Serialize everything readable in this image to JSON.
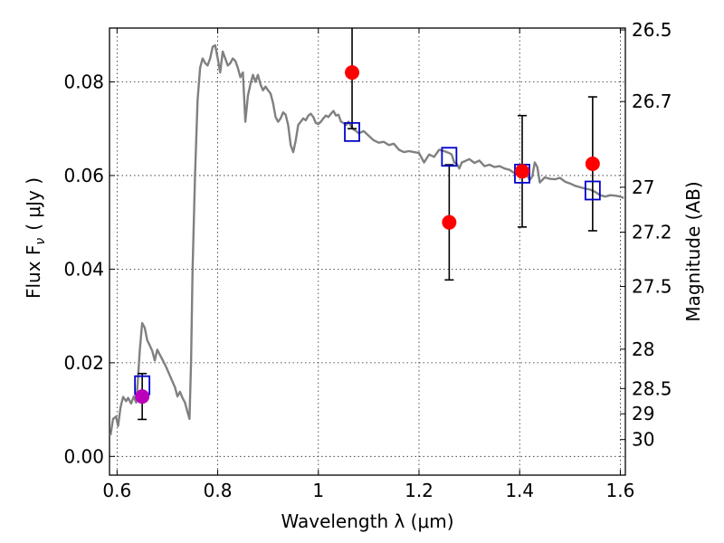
{
  "chart_data": {
    "type": "scatter",
    "xlabel": "Wavelength  λ (μm)",
    "ylabel_left": "Flux  F",
    "ylabel_left_sub": "ν",
    "ylabel_left_unit": "( μJy )",
    "ylabel_right": "Magnitude (AB)",
    "xlim": [
      0.585,
      1.61
    ],
    "ylim": [
      -0.004,
      0.0915
    ],
    "grid": true,
    "x_ticks": [
      {
        "value": 0.6,
        "label": "0.6"
      },
      {
        "value": 0.8,
        "label": "0.8"
      },
      {
        "value": 1.0,
        "label": "1"
      },
      {
        "value": 1.2,
        "label": "1.2"
      },
      {
        "value": 1.4,
        "label": "1.4"
      },
      {
        "value": 1.6,
        "label": "1.6"
      }
    ],
    "y_ticks": [
      {
        "value": 0.0,
        "label": "0.00"
      },
      {
        "value": 0.02,
        "label": "0.02"
      },
      {
        "value": 0.04,
        "label": "0.04"
      },
      {
        "value": 0.06,
        "label": "0.06"
      },
      {
        "value": 0.08,
        "label": "0.08"
      }
    ],
    "magnitude_ticks": [
      {
        "flux": 0.0911,
        "label": "26.5"
      },
      {
        "flux": 0.0758,
        "label": "26.7"
      },
      {
        "flux": 0.0575,
        "label": "27"
      },
      {
        "flux": 0.0479,
        "label": "27.2"
      },
      {
        "flux": 0.0363,
        "label": "27.5"
      },
      {
        "flux": 0.0229,
        "label": "28"
      },
      {
        "flux": 0.0145,
        "label": "28.5"
      },
      {
        "flux": 0.0091,
        "label": "29"
      },
      {
        "flux": 0.0036,
        "label": "30"
      }
    ],
    "series": [
      {
        "kind": "model_spectrum",
        "color": "#808080",
        "points": [
          [
            0.587,
            0.0045
          ],
          [
            0.592,
            0.008
          ],
          [
            0.598,
            0.0085
          ],
          [
            0.602,
            0.0065
          ],
          [
            0.607,
            0.0105
          ],
          [
            0.612,
            0.0127
          ],
          [
            0.618,
            0.0118
          ],
          [
            0.622,
            0.0125
          ],
          [
            0.628,
            0.0113
          ],
          [
            0.633,
            0.0128
          ],
          [
            0.638,
            0.0115
          ],
          [
            0.641,
            0.0155
          ],
          [
            0.645,
            0.0225
          ],
          [
            0.65,
            0.0285
          ],
          [
            0.655,
            0.0275
          ],
          [
            0.66,
            0.0248
          ],
          [
            0.665,
            0.0237
          ],
          [
            0.67,
            0.0225
          ],
          [
            0.675,
            0.0205
          ],
          [
            0.68,
            0.0228
          ],
          [
            0.686,
            0.0215
          ],
          [
            0.692,
            0.0203
          ],
          [
            0.698,
            0.019
          ],
          [
            0.704,
            0.0175
          ],
          [
            0.71,
            0.016
          ],
          [
            0.715,
            0.0148
          ],
          [
            0.72,
            0.0128
          ],
          [
            0.725,
            0.0138
          ],
          [
            0.73,
            0.0125
          ],
          [
            0.735,
            0.0115
          ],
          [
            0.74,
            0.0095
          ],
          [
            0.744,
            0.008
          ],
          [
            0.747,
            0.02
          ],
          [
            0.75,
            0.04
          ],
          [
            0.755,
            0.06
          ],
          [
            0.76,
            0.076
          ],
          [
            0.765,
            0.083
          ],
          [
            0.77,
            0.085
          ],
          [
            0.775,
            0.084
          ],
          [
            0.78,
            0.0835
          ],
          [
            0.785,
            0.085
          ],
          [
            0.79,
            0.0875
          ],
          [
            0.795,
            0.0878
          ],
          [
            0.8,
            0.085
          ],
          [
            0.805,
            0.082
          ],
          [
            0.81,
            0.0865
          ],
          [
            0.815,
            0.085
          ],
          [
            0.82,
            0.0835
          ],
          [
            0.825,
            0.084
          ],
          [
            0.83,
            0.085
          ],
          [
            0.835,
            0.0845
          ],
          [
            0.84,
            0.083
          ],
          [
            0.845,
            0.081
          ],
          [
            0.85,
            0.082
          ],
          [
            0.855,
            0.0715
          ],
          [
            0.86,
            0.077
          ],
          [
            0.865,
            0.0795
          ],
          [
            0.87,
            0.0815
          ],
          [
            0.875,
            0.08
          ],
          [
            0.88,
            0.0815
          ],
          [
            0.885,
            0.0795
          ],
          [
            0.89,
            0.0782
          ],
          [
            0.895,
            0.079
          ],
          [
            0.9,
            0.0782
          ],
          [
            0.905,
            0.0775
          ],
          [
            0.91,
            0.0755
          ],
          [
            0.915,
            0.0725
          ],
          [
            0.92,
            0.0715
          ],
          [
            0.925,
            0.0722
          ],
          [
            0.93,
            0.0735
          ],
          [
            0.935,
            0.073
          ],
          [
            0.94,
            0.0708
          ],
          [
            0.945,
            0.0665
          ],
          [
            0.95,
            0.065
          ],
          [
            0.955,
            0.0675
          ],
          [
            0.96,
            0.0708
          ],
          [
            0.965,
            0.0715
          ],
          [
            0.97,
            0.0722
          ],
          [
            0.975,
            0.0718
          ],
          [
            0.98,
            0.0728
          ],
          [
            0.985,
            0.0732
          ],
          [
            0.99,
            0.0725
          ],
          [
            0.995,
            0.0712
          ],
          [
            1.0,
            0.071
          ],
          [
            1.005,
            0.0715
          ],
          [
            1.01,
            0.0722
          ],
          [
            1.015,
            0.0728
          ],
          [
            1.02,
            0.0725
          ],
          [
            1.025,
            0.0732
          ],
          [
            1.03,
            0.0738
          ],
          [
            1.035,
            0.0728
          ],
          [
            1.04,
            0.073
          ],
          [
            1.045,
            0.0715
          ],
          [
            1.05,
            0.0712
          ],
          [
            1.055,
            0.0708
          ],
          [
            1.06,
            0.0715
          ],
          [
            1.065,
            0.0705
          ],
          [
            1.07,
            0.0698
          ],
          [
            1.075,
            0.0695
          ],
          [
            1.08,
            0.069
          ],
          [
            1.09,
            0.0695
          ],
          [
            1.1,
            0.0685
          ],
          [
            1.11,
            0.0675
          ],
          [
            1.12,
            0.067
          ],
          [
            1.13,
            0.0672
          ],
          [
            1.14,
            0.0665
          ],
          [
            1.15,
            0.0668
          ],
          [
            1.16,
            0.0655
          ],
          [
            1.17,
            0.065
          ],
          [
            1.18,
            0.0652
          ],
          [
            1.19,
            0.065
          ],
          [
            1.2,
            0.0648
          ],
          [
            1.21,
            0.0628
          ],
          [
            1.22,
            0.0645
          ],
          [
            1.23,
            0.064
          ],
          [
            1.24,
            0.0655
          ],
          [
            1.25,
            0.0652
          ],
          [
            1.26,
            0.0648
          ],
          [
            1.265,
            0.0645
          ],
          [
            1.27,
            0.0628
          ],
          [
            1.275,
            0.0625
          ],
          [
            1.28,
            0.0615
          ],
          [
            1.285,
            0.0628
          ],
          [
            1.29,
            0.063
          ],
          [
            1.3,
            0.0635
          ],
          [
            1.31,
            0.0627
          ],
          [
            1.32,
            0.0632
          ],
          [
            1.33,
            0.062
          ],
          [
            1.34,
            0.0623
          ],
          [
            1.35,
            0.0618
          ],
          [
            1.36,
            0.062
          ],
          [
            1.37,
            0.0615
          ],
          [
            1.38,
            0.0612
          ],
          [
            1.39,
            0.0605
          ],
          [
            1.4,
            0.06
          ],
          [
            1.41,
            0.061
          ],
          [
            1.42,
            0.059
          ],
          [
            1.425,
            0.0598
          ],
          [
            1.43,
            0.0628
          ],
          [
            1.435,
            0.0618
          ],
          [
            1.44,
            0.0585
          ],
          [
            1.45,
            0.0596
          ],
          [
            1.46,
            0.0593
          ],
          [
            1.47,
            0.0592
          ],
          [
            1.48,
            0.0595
          ],
          [
            1.49,
            0.0587
          ],
          [
            1.5,
            0.0583
          ],
          [
            1.51,
            0.0578
          ],
          [
            1.52,
            0.0575
          ],
          [
            1.53,
            0.0572
          ],
          [
            1.54,
            0.057
          ],
          [
            1.55,
            0.0565
          ],
          [
            1.56,
            0.0558
          ],
          [
            1.57,
            0.0555
          ],
          [
            1.58,
            0.0558
          ],
          [
            1.59,
            0.0557
          ],
          [
            1.6,
            0.0555
          ],
          [
            1.607,
            0.0552
          ]
        ]
      },
      {
        "kind": "model_photometry",
        "marker": "open-square",
        "color": "#0000cc",
        "points": [
          {
            "x": 0.65,
            "y": 0.0152
          },
          {
            "x": 1.067,
            "y": 0.0693
          },
          {
            "x": 1.26,
            "y": 0.064
          },
          {
            "x": 1.405,
            "y": 0.0604
          },
          {
            "x": 1.545,
            "y": 0.0568
          }
        ]
      },
      {
        "kind": "observed_photometry",
        "marker": "filled-circle",
        "color": "#ff0000",
        "points": [
          {
            "x": 1.067,
            "y": 0.082,
            "err": 0.012
          },
          {
            "x": 1.26,
            "y": 0.05,
            "err": 0.0123
          },
          {
            "x": 1.405,
            "y": 0.0609,
            "err": 0.0119
          },
          {
            "x": 1.545,
            "y": 0.0625,
            "err": 0.0143
          }
        ]
      },
      {
        "kind": "observed_photometry_optical",
        "marker": "filled-circle",
        "color": "#bb00bb",
        "points": [
          {
            "x": 0.65,
            "y": 0.0128,
            "err": 0.0049
          }
        ]
      }
    ]
  }
}
